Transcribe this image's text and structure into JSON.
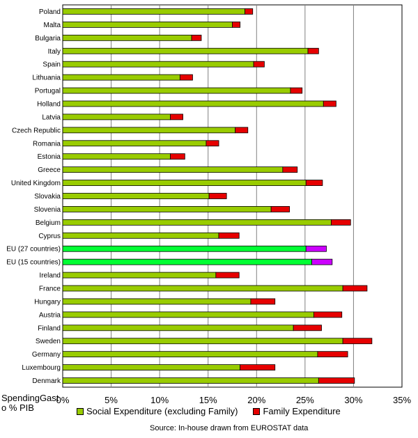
{
  "chart_data": {
    "type": "bar",
    "orientation": "horizontal",
    "stacked": true,
    "categories": [
      "Poland",
      "Malta",
      "Bulgaria",
      "Italy",
      "Spain",
      "Lithuania",
      "Portugal",
      "Holland",
      "Latvia",
      "Czech Republic",
      "Romania",
      "Estonia",
      "Greece",
      "United Kingdom",
      "Slovakia",
      "Slovenia",
      "Belgium",
      "Cyprus",
      "EU (27 countries)",
      "EU (15 countries)",
      "Ireland",
      "France",
      "Hungary",
      "Austria",
      "Finland",
      "Sweden",
      "Germany",
      "Luxembourg",
      "Denmark"
    ],
    "series": [
      {
        "name": "Social Expenditure (excluding Family)",
        "values": [
          18.8,
          17.5,
          13.3,
          25.3,
          19.7,
          12.1,
          23.5,
          26.9,
          11.1,
          17.8,
          14.8,
          11.1,
          22.7,
          25.1,
          15.1,
          21.5,
          27.7,
          16.1,
          25.1,
          25.7,
          15.8,
          28.9,
          19.4,
          25.9,
          23.8,
          28.9,
          26.3,
          18.3,
          26.4
        ]
      },
      {
        "name": "Family Expenditure",
        "values": [
          0.8,
          0.8,
          1.0,
          1.1,
          1.1,
          1.3,
          1.2,
          1.3,
          1.3,
          1.3,
          1.3,
          1.5,
          1.5,
          1.7,
          1.8,
          1.9,
          2.0,
          2.1,
          2.1,
          2.1,
          2.4,
          2.5,
          2.5,
          2.9,
          2.9,
          3.0,
          3.1,
          3.6,
          3.7
        ]
      }
    ],
    "highlight_categories": [
      "EU (27 countries)",
      "EU (15 countries)"
    ],
    "colors": {
      "social": "#99cc00",
      "family": "#e60000",
      "eu_social": "#00ff33",
      "eu_family": "#cc00ff",
      "grid": "#808080"
    },
    "xlim": [
      0,
      35
    ],
    "xticks": [
      "0%",
      "5%",
      "10%",
      "15%",
      "20%",
      "25%",
      "30%",
      "35%"
    ],
    "xtick_values": [
      0,
      5,
      10,
      15,
      20,
      25,
      30,
      35
    ],
    "ylabel": "SpendingGast o % PIB",
    "grid": true,
    "legend": "bottom"
  },
  "legend": {
    "social_label": "Social Expenditure (excluding Family)",
    "family_label": "Family Expenditure"
  },
  "ylabel": "SpendingGast o % PIB",
  "source": "Source: In-house drawn from EUROSTAT data"
}
